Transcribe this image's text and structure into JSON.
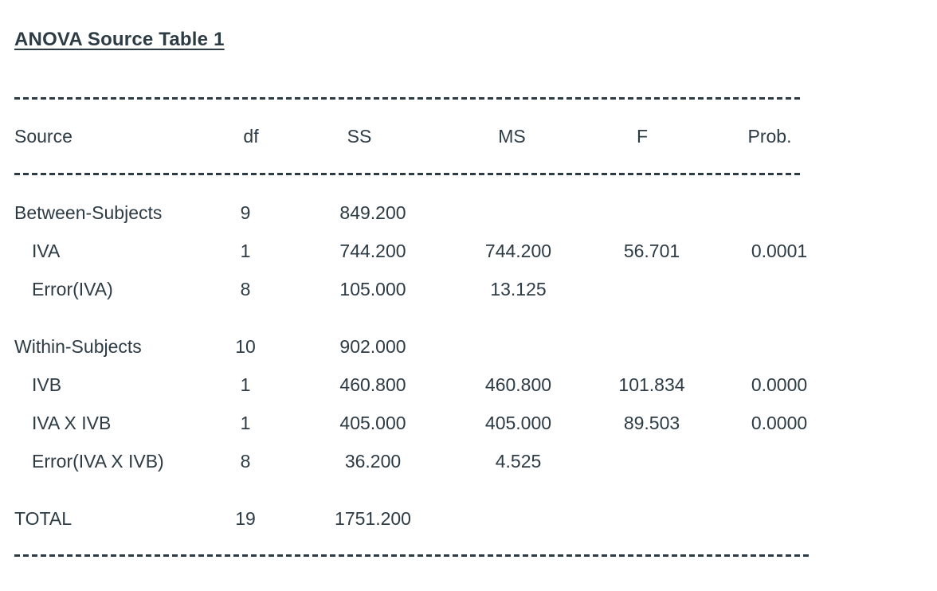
{
  "title": "ANOVA Source Table 1",
  "colors": {
    "text": "#2D3B45",
    "background": "#ffffff"
  },
  "table": {
    "columns": [
      "Source",
      "df",
      "SS",
      "MS",
      "F",
      "Prob."
    ],
    "rows": [
      {
        "source": "Between-Subjects",
        "indent": false,
        "df": "9",
        "ss": "849.200",
        "ms": "",
        "f": "",
        "prob": ""
      },
      {
        "source": "IVA",
        "indent": true,
        "df": "1",
        "ss": "744.200",
        "ms": "744.200",
        "f": "56.701",
        "prob": "0.0001"
      },
      {
        "source": "Error(IVA)",
        "indent": true,
        "df": "8",
        "ss": "105.000",
        "ms": "13.125",
        "f": "",
        "prob": ""
      },
      {
        "source": "Within-Subjects",
        "indent": false,
        "df": "10",
        "ss": "902.000",
        "ms": "",
        "f": "",
        "prob": ""
      },
      {
        "source": "IVB",
        "indent": true,
        "df": "1",
        "ss": "460.800",
        "ms": "460.800",
        "f": "101.834",
        "prob": "0.0000"
      },
      {
        "source": "IVA X IVB",
        "indent": true,
        "df": "1",
        "ss": "405.000",
        "ms": "405.000",
        "f": "89.503",
        "prob": "0.0000"
      },
      {
        "source": "Error(IVA X IVB)",
        "indent": true,
        "df": "8",
        "ss": "36.200",
        "ms": "4.525",
        "f": "",
        "prob": ""
      },
      {
        "source": "TOTAL",
        "indent": false,
        "df": "19",
        "ss": "1751.200",
        "ms": "",
        "f": "",
        "prob": ""
      }
    ]
  }
}
